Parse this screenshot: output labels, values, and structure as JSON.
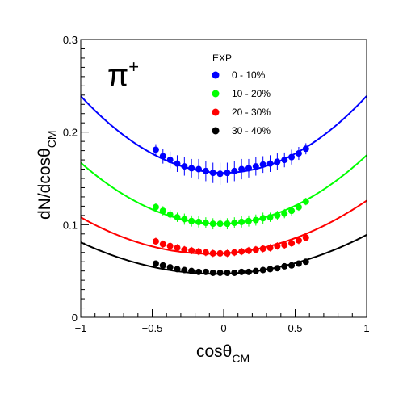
{
  "chart_data": {
    "type": "scatter",
    "particle_label": "π",
    "particle_charge": "+",
    "xlabel_main": "cosθ",
    "xlabel_sub": "CM",
    "ylabel_main": "dN/dcosθ",
    "ylabel_sub": "CM",
    "xlim": [
      -1,
      1
    ],
    "ylim": [
      0,
      0.3
    ],
    "x_ticks": [
      -1,
      -0.5,
      0,
      0.5,
      1
    ],
    "x_tick_labels": [
      "−1",
      "−0.5",
      "0",
      "0.5",
      "1"
    ],
    "y_ticks": [
      0,
      0.1,
      0.2,
      0.3
    ],
    "y_tick_labels": [
      "0",
      "0.1",
      "0.2",
      "0.3"
    ],
    "legend_title": "EXP",
    "legend_position": "top-center",
    "grid": false,
    "x": [
      -0.475,
      -0.425,
      -0.375,
      -0.325,
      -0.275,
      -0.225,
      -0.175,
      -0.125,
      -0.075,
      -0.025,
      0.025,
      0.075,
      0.125,
      0.175,
      0.225,
      0.275,
      0.325,
      0.375,
      0.425,
      0.475,
      0.525,
      0.575
    ],
    "series": [
      {
        "name": "0 - 10%",
        "color": "#0000ff",
        "y": [
          0.181,
          0.174,
          0.17,
          0.166,
          0.163,
          0.161,
          0.16,
          0.158,
          0.156,
          0.155,
          0.156,
          0.158,
          0.16,
          0.161,
          0.163,
          0.165,
          0.166,
          0.168,
          0.17,
          0.173,
          0.177,
          0.182
        ],
        "err": [
          0.006,
          0.008,
          0.009,
          0.009,
          0.01,
          0.01,
          0.011,
          0.011,
          0.011,
          0.012,
          0.011,
          0.011,
          0.011,
          0.01,
          0.01,
          0.009,
          0.009,
          0.009,
          0.008,
          0.008,
          0.007,
          0.006
        ],
        "fit": {
          "a": 0.156,
          "b": 0.0,
          "c": 0.083
        }
      },
      {
        "name": "10 - 20%",
        "color": "#00ff00",
        "y": [
          0.119,
          0.115,
          0.111,
          0.108,
          0.106,
          0.104,
          0.103,
          0.102,
          0.101,
          0.101,
          0.101,
          0.102,
          0.103,
          0.104,
          0.105,
          0.107,
          0.108,
          0.11,
          0.112,
          0.115,
          0.119,
          0.125
        ],
        "err": [
          0.004,
          0.005,
          0.005,
          0.005,
          0.006,
          0.006,
          0.006,
          0.006,
          0.006,
          0.006,
          0.006,
          0.006,
          0.006,
          0.006,
          0.006,
          0.006,
          0.005,
          0.005,
          0.005,
          0.005,
          0.004,
          0.004
        ],
        "fit": {
          "a": 0.101,
          "b": 0.004,
          "c": 0.07
        }
      },
      {
        "name": "20 - 30%",
        "color": "#ff0000",
        "y": [
          0.082,
          0.079,
          0.077,
          0.075,
          0.073,
          0.072,
          0.071,
          0.07,
          0.069,
          0.069,
          0.069,
          0.07,
          0.071,
          0.072,
          0.073,
          0.074,
          0.075,
          0.077,
          0.078,
          0.08,
          0.083,
          0.086
        ],
        "err": [
          0.004,
          0.004,
          0.004,
          0.004,
          0.004,
          0.004,
          0.004,
          0.004,
          0.004,
          0.004,
          0.004,
          0.004,
          0.004,
          0.004,
          0.004,
          0.004,
          0.004,
          0.004,
          0.004,
          0.004,
          0.004,
          0.004
        ],
        "fit": {
          "a": 0.069,
          "b": 0.009,
          "c": 0.048
        }
      },
      {
        "name": "30 - 40%",
        "color": "#000000",
        "y": [
          0.058,
          0.056,
          0.054,
          0.052,
          0.051,
          0.05,
          0.049,
          0.049,
          0.048,
          0.048,
          0.048,
          0.048,
          0.049,
          0.049,
          0.05,
          0.051,
          0.052,
          0.053,
          0.055,
          0.056,
          0.058,
          0.06
        ],
        "err": [
          0.002,
          0.002,
          0.002,
          0.002,
          0.002,
          0.002,
          0.002,
          0.002,
          0.002,
          0.002,
          0.002,
          0.002,
          0.002,
          0.002,
          0.002,
          0.002,
          0.002,
          0.002,
          0.002,
          0.002,
          0.002,
          0.002
        ],
        "fit": {
          "a": 0.047,
          "b": 0.004,
          "c": 0.038
        }
      }
    ]
  }
}
